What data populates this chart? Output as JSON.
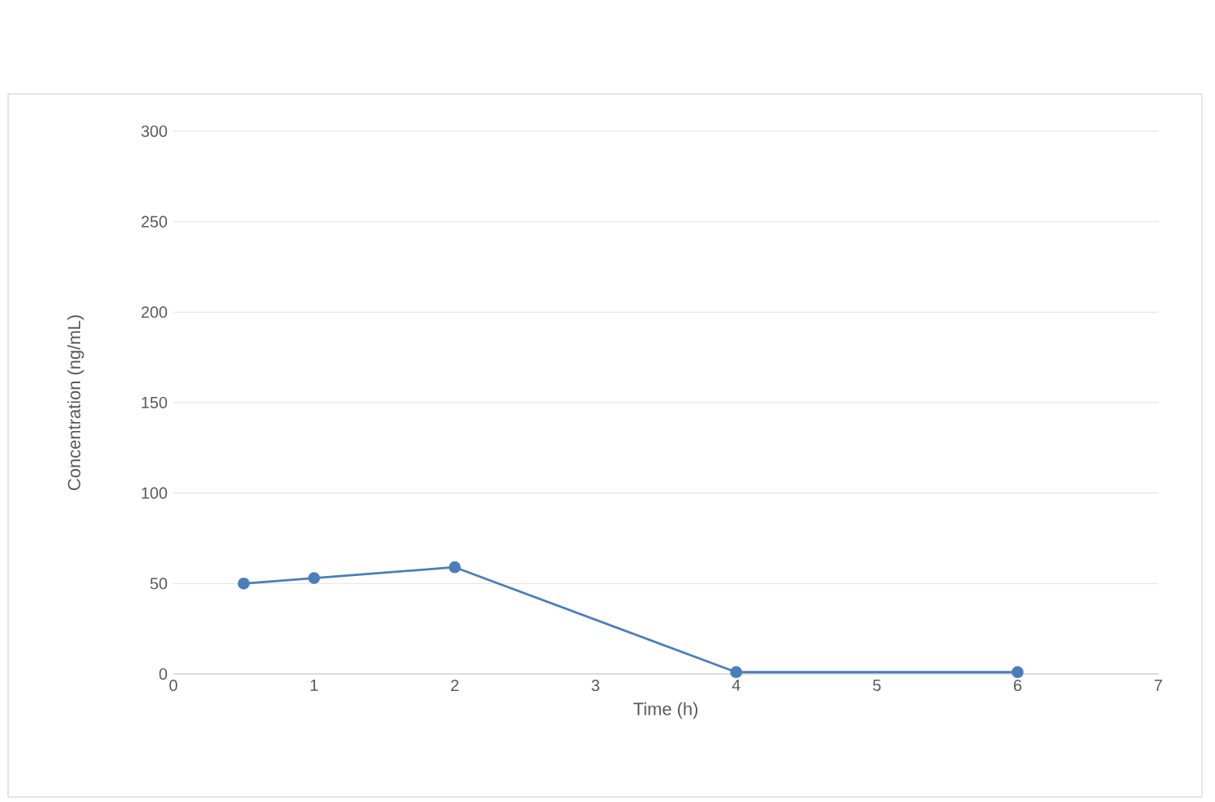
{
  "chart_data": {
    "type": "line",
    "xlabel": "Time (h)",
    "ylabel": "Concentration (ng/mL)",
    "x": [
      0.5,
      1,
      2,
      4,
      6
    ],
    "series": [
      {
        "color": "#4a7ebb",
        "values": [
          50,
          53,
          59,
          1,
          1
        ]
      }
    ],
    "xlim": [
      0,
      7
    ],
    "xticks": [
      0,
      1,
      2,
      3,
      4,
      5,
      6,
      7
    ],
    "ylim": [
      0,
      300
    ],
    "yticks": [
      0,
      50,
      100,
      150,
      200,
      250,
      300
    ],
    "grid": "y",
    "marker": "circle",
    "line_style": "solid"
  }
}
